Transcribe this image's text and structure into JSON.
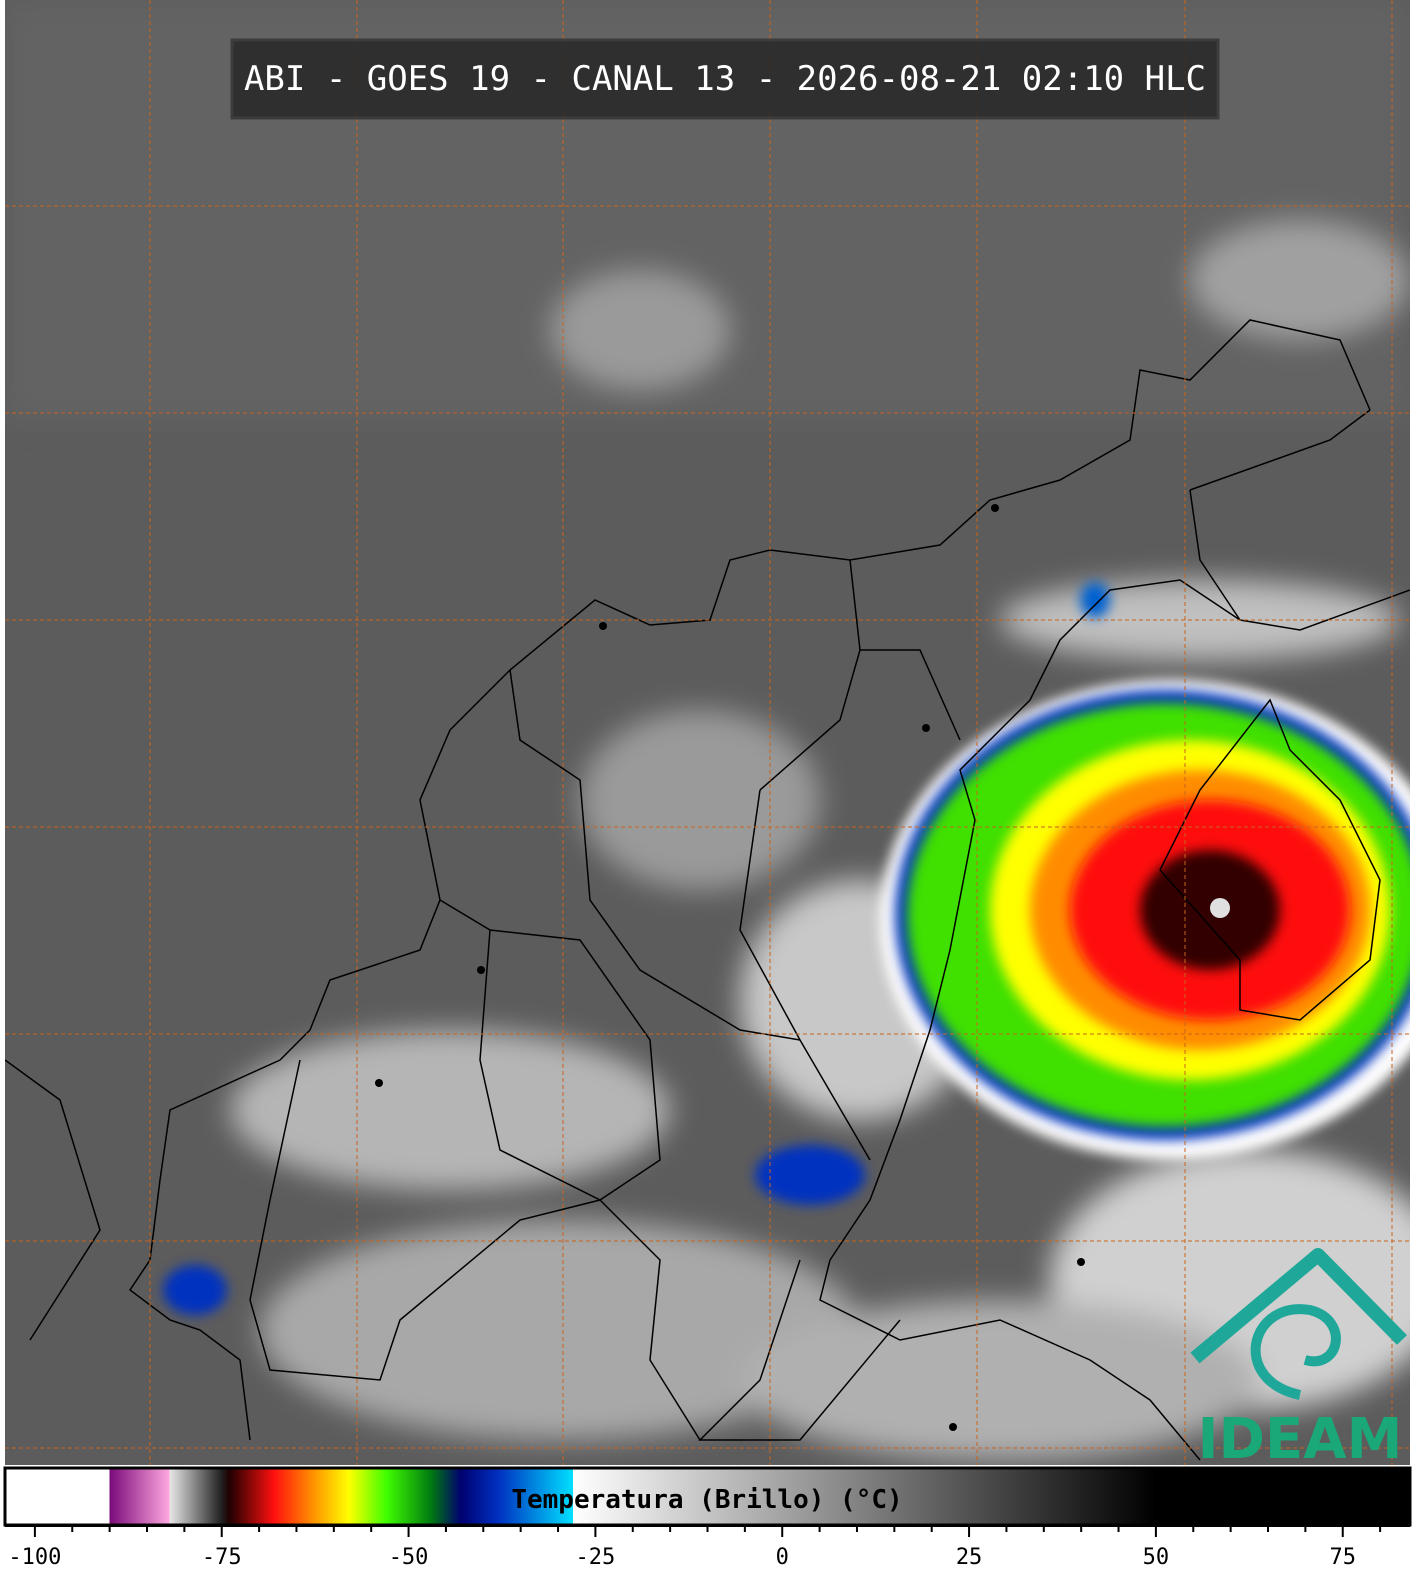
{
  "header": {
    "title": "ABI - GOES 19 - CANAL 13 - 2026-08-21 02:10 HLC"
  },
  "colorbar": {
    "label": "Temperatura (Brillo) (°C)",
    "xlim": [
      -104,
      84
    ],
    "xticks": [
      -100,
      -75,
      -50,
      -25,
      0,
      25,
      50,
      75
    ],
    "minor_xticks": [
      -95,
      -90,
      -85,
      -80,
      -70,
      -65,
      -60,
      -55,
      -45,
      -40,
      -35,
      -30,
      -20,
      -15,
      -10,
      -5,
      5,
      10,
      15,
      20,
      30,
      35,
      40,
      45,
      55,
      60,
      65,
      70,
      80
    ],
    "stops": [
      {
        "value": -104,
        "color": "#ffffff"
      },
      {
        "value": -90,
        "color": "#ffffff"
      },
      {
        "value": -90,
        "color": "#7a0a7a"
      },
      {
        "value": -82,
        "color": "#ffa8e0"
      },
      {
        "value": -82,
        "color": "#e8e8e8"
      },
      {
        "value": -75,
        "color": "#202020"
      },
      {
        "value": -74,
        "color": "#200000"
      },
      {
        "value": -68,
        "color": "#ff1010"
      },
      {
        "value": -63,
        "color": "#ff8c00"
      },
      {
        "value": -58,
        "color": "#ffff00"
      },
      {
        "value": -53,
        "color": "#40ff00"
      },
      {
        "value": -47,
        "color": "#007a10"
      },
      {
        "value": -43,
        "color": "#000070"
      },
      {
        "value": -38,
        "color": "#0030c0"
      },
      {
        "value": -28,
        "color": "#00e0ff"
      },
      {
        "value": -28,
        "color": "#ffffff"
      },
      {
        "value": 50,
        "color": "#000000"
      },
      {
        "value": 84,
        "color": "#000000"
      }
    ]
  },
  "logo": {
    "text": "IDEAM"
  }
}
